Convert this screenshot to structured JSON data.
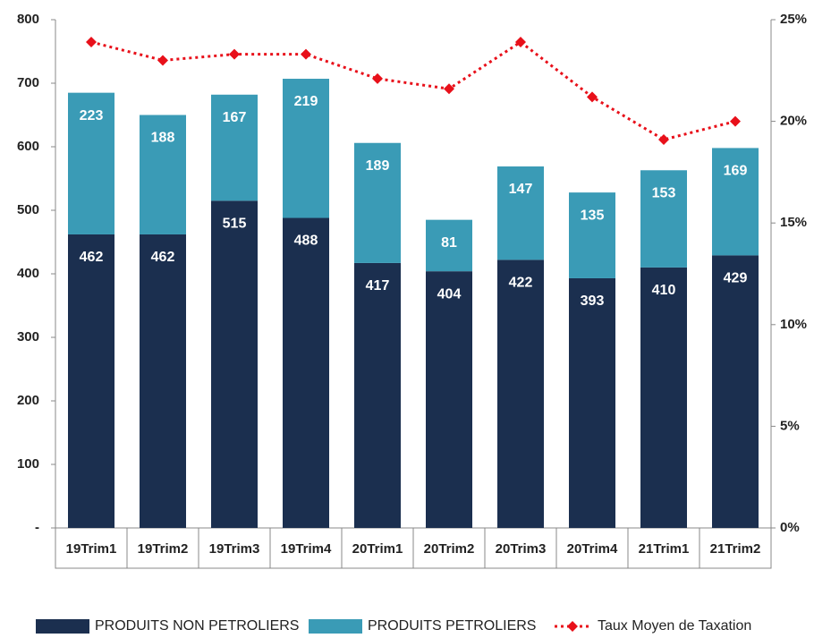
{
  "chart_data": {
    "type": "bar",
    "stacked": true,
    "categories": [
      "19Trim1",
      "19Trim2",
      "19Trim3",
      "19Trim4",
      "20Trim1",
      "20Trim2",
      "20Trim3",
      "20Trim4",
      "21Trim1",
      "21Trim2"
    ],
    "series": [
      {
        "name": "PRODUITS NON PETROLIERS",
        "color": "#1b2f4f",
        "type": "bar",
        "values": [
          462,
          462,
          515,
          488,
          417,
          404,
          422,
          393,
          410,
          429
        ]
      },
      {
        "name": "PRODUITS PETROLIERS",
        "color": "#3a9bb6",
        "type": "bar",
        "values": [
          223,
          188,
          167,
          219,
          189,
          81,
          147,
          135,
          153,
          169
        ]
      },
      {
        "name": "Taux Moyen de Taxation",
        "color": "#e8101a",
        "type": "line",
        "axis": "y2",
        "values": [
          23.9,
          23.0,
          23.3,
          23.3,
          22.1,
          21.6,
          23.9,
          21.2,
          19.1,
          20.0
        ]
      }
    ],
    "ylim": [
      0,
      800
    ],
    "yticks": [
      {
        "value": 0,
        "label": "-"
      },
      100,
      200,
      300,
      400,
      500,
      600,
      700,
      800
    ],
    "y2lim": [
      0,
      25
    ],
    "y2ticks": [
      {
        "value": 0,
        "label": "0%"
      },
      {
        "value": 5,
        "label": "5%"
      },
      {
        "value": 10,
        "label": "10%"
      },
      {
        "value": 15,
        "label": "15%"
      },
      {
        "value": 20,
        "label": "20%"
      },
      {
        "value": 25,
        "label": "25%"
      }
    ],
    "legend": "bottom"
  }
}
